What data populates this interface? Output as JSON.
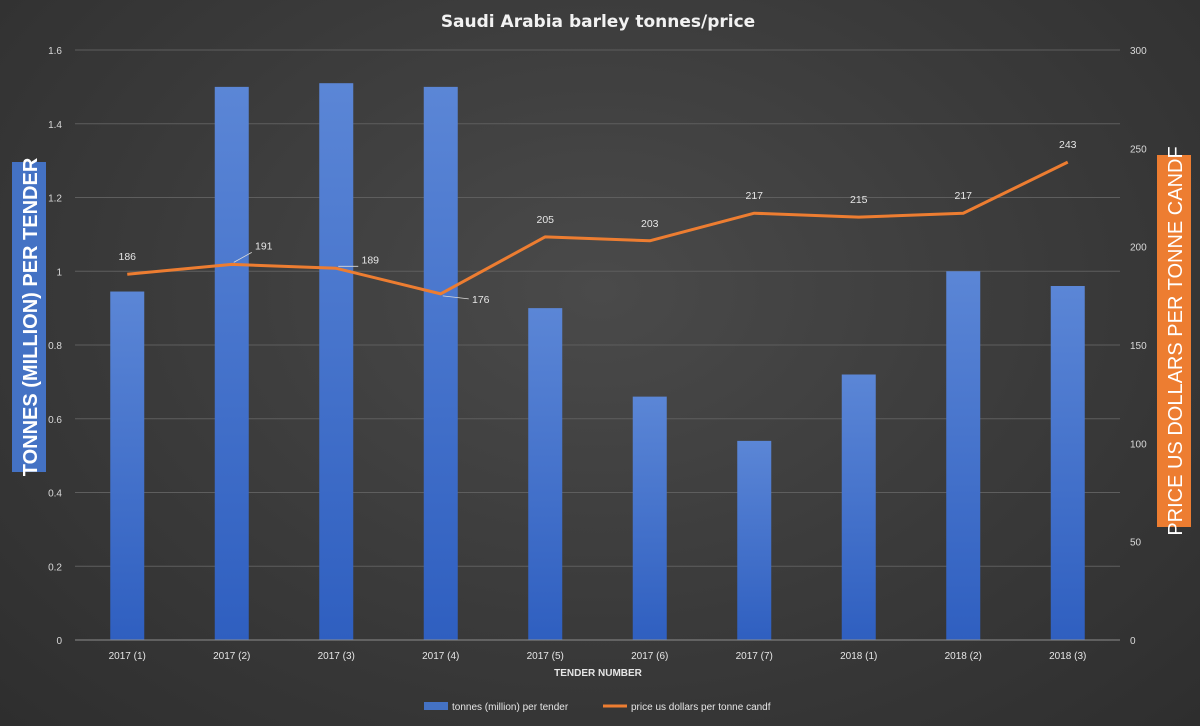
{
  "chart_data": {
    "type": "bar",
    "title": "Saudi Arabia barley tonnes/price",
    "xlabel": "TENDER NUMBER",
    "ylabel": "TONNES (MILLION) PER TENDER",
    "ylabel_right": "PRICE US DOLLARS PER TONNE CANDF",
    "categories": [
      "2017 (1)",
      "2017 (2)",
      "2017 (3)",
      "2017 (4)",
      "2017 (5)",
      "2017 (6)",
      "2017 (7)",
      "2018 (1)",
      "2018 (2)",
      "2018 (3)"
    ],
    "ylim": [
      0,
      1.6
    ],
    "y_ticks": [
      "0",
      "0.2",
      "0.4",
      "0.6",
      "0.8",
      "1",
      "1.2",
      "1.4",
      "1.6"
    ],
    "y2lim": [
      0,
      300
    ],
    "y2_ticks": [
      "0",
      "50",
      "100",
      "150",
      "200",
      "250",
      "300"
    ],
    "grid": true,
    "legend_position": "bottom",
    "series": [
      {
        "name": "tonnes (million) per tender",
        "type": "bar",
        "axis": "left",
        "color": "#4472c4",
        "values": [
          0.945,
          1.5,
          1.51,
          1.5,
          0.9,
          0.66,
          0.54,
          0.72,
          1.0,
          0.96
        ]
      },
      {
        "name": "price us dollars per tonne candf",
        "type": "line",
        "axis": "right",
        "color": "#ed7d31",
        "values": [
          186,
          191,
          189,
          176,
          205,
          203,
          217,
          215,
          217,
          243
        ],
        "labels": [
          "186",
          "191",
          "189",
          "176",
          "205",
          "203",
          "217",
          "215",
          "217",
          "243"
        ]
      }
    ]
  }
}
